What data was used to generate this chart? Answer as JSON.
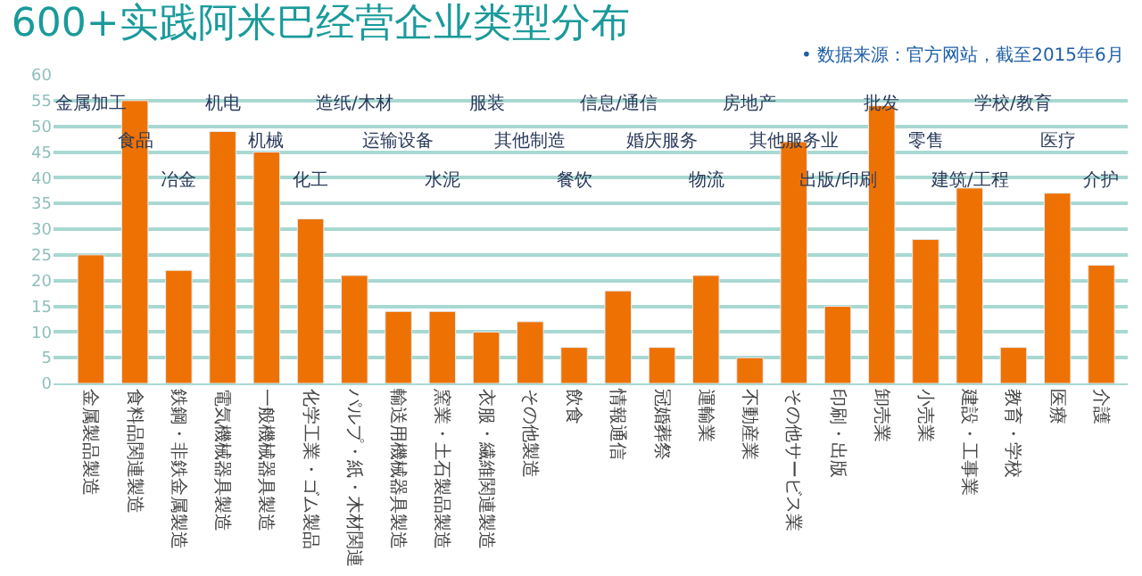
{
  "chart_data": {
    "type": "bar",
    "title": "600+实践阿米巴经营企业类型分布",
    "categories": [
      "金属製品製造",
      "食料品関連製造",
      "鉄鋼・非鉄金属製造",
      "電気機械器具製造",
      "一般機械器具製造",
      "化学工業・ゴム製品",
      "パルプ・紙・木材関連",
      "輸送用機械器具製造",
      "窯業・土石製品製造",
      "衣服・繊維関連製造",
      "その他製造",
      "飲食",
      "情報通信",
      "冠婚葬祭",
      "運輸業",
      "不動産業",
      "その他サービス業",
      "印刷・出版",
      "卸売業",
      "小売業",
      "建設・工事業",
      "教育・学校",
      "医療",
      "介護"
    ],
    "series": [
      {
        "color": "#ee7203",
        "values": [
          25,
          55,
          22,
          49,
          45,
          32,
          21,
          14,
          14,
          10,
          12,
          7,
          18,
          7,
          21,
          5,
          47,
          15,
          54,
          28,
          38,
          7,
          37,
          23
        ]
      }
    ],
    "ylim": [
      0,
      60
    ],
    "yticks": [
      0,
      5,
      10,
      15,
      20,
      25,
      30,
      35,
      40,
      45,
      50,
      55,
      60
    ],
    "grid": "y",
    "annotations": [
      "金属加工",
      "食品",
      "冶金",
      "机电",
      "机械",
      "化工",
      "造纸/木材",
      "运输设备",
      "水泥",
      "服装",
      "其他制造",
      "餐饮",
      "信息/通信",
      "婚庆服务",
      "物流",
      "房地产",
      "其他服务业",
      "出版/印刷",
      "批发",
      "零售",
      "建筑/工程",
      "学校/教育",
      "医疗",
      "介护",
      "• 数据来源：官方网站，截至2015年6月"
    ]
  }
}
